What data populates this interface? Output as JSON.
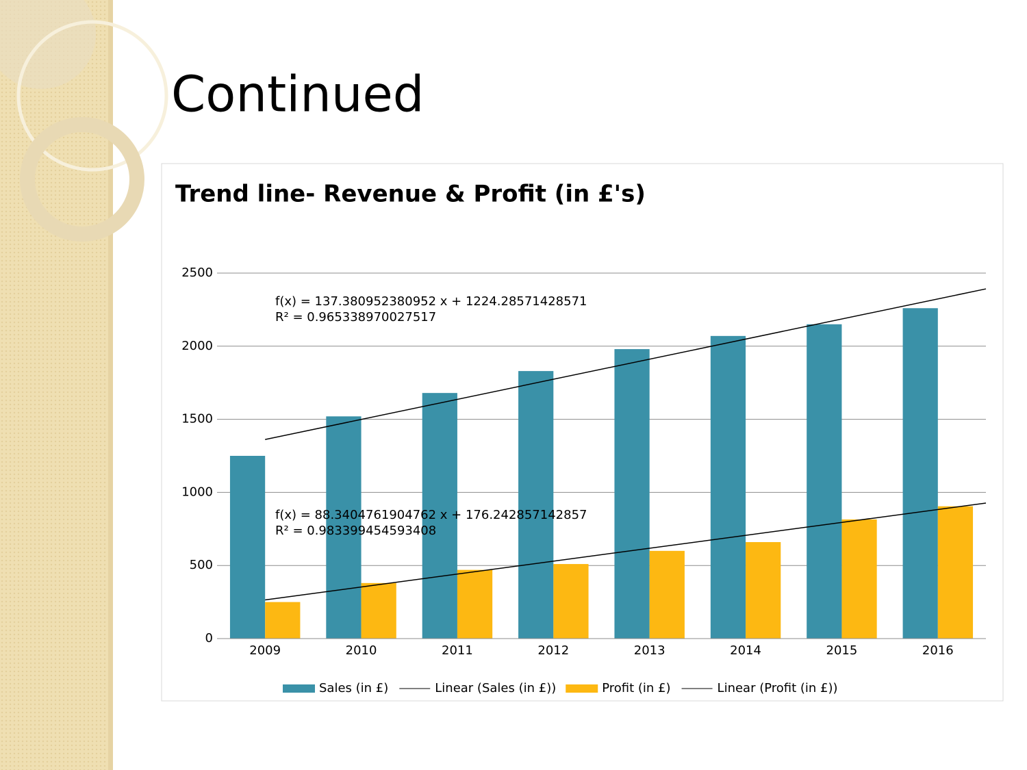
{
  "slide_title": "Continued",
  "chart_data": {
    "type": "bar",
    "title": "Trend line- Revenue & Profit (in £'s)",
    "categories": [
      "2009",
      "2010",
      "2011",
      "2012",
      "2013",
      "2014",
      "2015",
      "2016"
    ],
    "series": [
      {
        "name": "Sales (in £)",
        "color": "#3a91a8",
        "values": [
          1250,
          1520,
          1680,
          1830,
          1980,
          2070,
          2150,
          2260
        ],
        "trendline": {
          "name": "Linear (Sales (in £))",
          "equation": "f(x) = 137.380952380952 x + 1224.28571428571",
          "r_squared": "R² = 0.965338970027517"
        }
      },
      {
        "name": "Profit (in £)",
        "color": "#fdb812",
        "values": [
          250,
          380,
          470,
          510,
          600,
          660,
          815,
          905
        ],
        "trendline": {
          "name": "Linear (Profit (in £))",
          "equation": "f(x) = 88.3404761904762 x + 176.242857142857",
          "r_squared": "R² = 0.983399454593408"
        }
      }
    ],
    "ylim": [
      0,
      2500
    ],
    "yticks": [
      0,
      500,
      1000,
      1500,
      2000,
      2500
    ],
    "grid": true,
    "legend": "bottom"
  }
}
